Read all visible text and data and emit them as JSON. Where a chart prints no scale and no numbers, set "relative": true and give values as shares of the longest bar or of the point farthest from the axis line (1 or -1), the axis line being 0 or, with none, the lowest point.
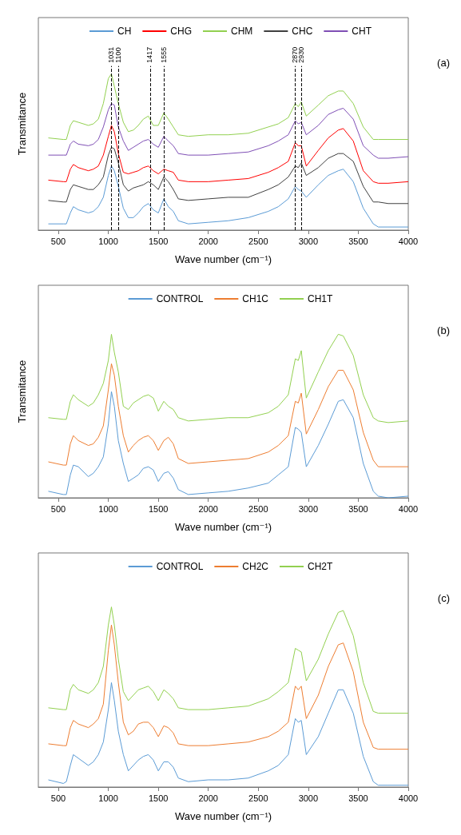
{
  "chart_data": [
    {
      "type": "line",
      "relative": true,
      "xlabel": "Wave number (cm⁻¹)",
      "ylabel": "Transmitance",
      "legend": "top",
      "tick_labels": "x",
      "annotations": [
        "(a)"
      ],
      "xlim": [
        300,
        4000
      ],
      "xticks": [
        500,
        1000,
        1500,
        2000,
        2500,
        3000,
        3500,
        4000
      ],
      "x": [
        400,
        550,
        580,
        620,
        650,
        700,
        800,
        850,
        900,
        950,
        1000,
        1031,
        1060,
        1100,
        1150,
        1200,
        1250,
        1300,
        1350,
        1400,
        1450,
        1500,
        1555,
        1600,
        1650,
        1700,
        1800,
        2000,
        2200,
        2400,
        2600,
        2700,
        2800,
        2870,
        2900,
        2930,
        2980,
        3100,
        3200,
        3300,
        3350,
        3450,
        3550,
        3650,
        3700,
        3800,
        4000
      ],
      "ref_lines": [
        {
          "axis": "x",
          "value": 1031,
          "label": "1031",
          "line_style": "dashed",
          "color": "#000000"
        },
        {
          "axis": "x",
          "value": 1100,
          "label": "1100",
          "line_style": "dashed",
          "color": "#000000"
        },
        {
          "axis": "x",
          "value": 1417,
          "label": "1417",
          "line_style": "dashed",
          "color": "#000000"
        },
        {
          "axis": "x",
          "value": 1555,
          "label": "1555",
          "line_style": "dashed",
          "color": "#000000"
        },
        {
          "axis": "x",
          "value": 2870,
          "label": "2870",
          "line_style": "dashed",
          "color": "#000000"
        },
        {
          "axis": "x",
          "value": 2930,
          "label": "2930",
          "line_style": "dashed",
          "color": "#000000"
        }
      ],
      "series": [
        {
          "name": "CH",
          "color": "#5b9bd5",
          "values": [
            0.04,
            0.04,
            0.04,
            0.11,
            0.15,
            0.13,
            0.11,
            0.12,
            0.15,
            0.21,
            0.35,
            0.41,
            0.38,
            0.28,
            0.14,
            0.08,
            0.08,
            0.11,
            0.15,
            0.17,
            0.13,
            0.11,
            0.2,
            0.15,
            0.12,
            0.06,
            0.04,
            0.05,
            0.06,
            0.08,
            0.12,
            0.15,
            0.2,
            0.28,
            0.26,
            0.25,
            0.21,
            0.29,
            0.35,
            0.38,
            0.39,
            0.31,
            0.14,
            0.04,
            0.02,
            0.02,
            0.02
          ]
        },
        {
          "name": "CHG",
          "color": "#ff0000",
          "values": [
            0.32,
            0.31,
            0.31,
            0.39,
            0.42,
            0.4,
            0.38,
            0.39,
            0.41,
            0.48,
            0.6,
            0.67,
            0.63,
            0.49,
            0.37,
            0.36,
            0.37,
            0.38,
            0.4,
            0.41,
            0.38,
            0.36,
            0.39,
            0.38,
            0.37,
            0.32,
            0.31,
            0.31,
            0.32,
            0.33,
            0.37,
            0.4,
            0.44,
            0.56,
            0.54,
            0.54,
            0.41,
            0.51,
            0.59,
            0.64,
            0.65,
            0.57,
            0.38,
            0.31,
            0.3,
            0.3,
            0.31
          ]
        },
        {
          "name": "CHM",
          "color": "#92d050",
          "values": [
            0.59,
            0.58,
            0.58,
            0.67,
            0.7,
            0.69,
            0.67,
            0.68,
            0.71,
            0.81,
            0.97,
            1.0,
            0.92,
            0.81,
            0.69,
            0.63,
            0.64,
            0.67,
            0.71,
            0.73,
            0.67,
            0.67,
            0.75,
            0.71,
            0.66,
            0.61,
            0.6,
            0.61,
            0.61,
            0.62,
            0.66,
            0.68,
            0.72,
            0.81,
            0.79,
            0.82,
            0.73,
            0.8,
            0.86,
            0.89,
            0.89,
            0.81,
            0.66,
            0.58,
            0.58,
            0.58,
            0.58
          ]
        },
        {
          "name": "CHC",
          "color": "#404040",
          "values": [
            0.19,
            0.18,
            0.18,
            0.26,
            0.29,
            0.28,
            0.26,
            0.26,
            0.29,
            0.34,
            0.48,
            0.53,
            0.52,
            0.43,
            0.29,
            0.25,
            0.27,
            0.28,
            0.29,
            0.31,
            0.29,
            0.26,
            0.34,
            0.31,
            0.26,
            0.2,
            0.19,
            0.2,
            0.21,
            0.21,
            0.26,
            0.29,
            0.34,
            0.41,
            0.4,
            0.43,
            0.35,
            0.4,
            0.46,
            0.49,
            0.49,
            0.44,
            0.28,
            0.18,
            0.18,
            0.17,
            0.17
          ]
        },
        {
          "name": "CHT",
          "color": "#7f4fb5",
          "values": [
            0.48,
            0.48,
            0.48,
            0.55,
            0.57,
            0.55,
            0.54,
            0.55,
            0.58,
            0.66,
            0.77,
            0.81,
            0.8,
            0.66,
            0.57,
            0.51,
            0.53,
            0.55,
            0.57,
            0.58,
            0.55,
            0.53,
            0.6,
            0.57,
            0.54,
            0.49,
            0.48,
            0.48,
            0.49,
            0.5,
            0.54,
            0.57,
            0.61,
            0.7,
            0.68,
            0.69,
            0.61,
            0.67,
            0.74,
            0.77,
            0.78,
            0.71,
            0.54,
            0.48,
            0.46,
            0.46,
            0.47
          ]
        }
      ]
    },
    {
      "type": "line",
      "relative": true,
      "xlabel": "Wave number (cm⁻¹)",
      "ylabel": "Transmitance",
      "legend": "top",
      "tick_labels": "x",
      "annotations": [
        "(b)"
      ],
      "xlim": [
        300,
        4000
      ],
      "xticks": [
        500,
        1000,
        1500,
        2000,
        2500,
        3000,
        3500,
        4000
      ],
      "x": [
        400,
        550,
        580,
        620,
        650,
        700,
        800,
        850,
        900,
        950,
        1000,
        1031,
        1060,
        1100,
        1150,
        1200,
        1250,
        1300,
        1350,
        1400,
        1450,
        1500,
        1555,
        1600,
        1650,
        1700,
        1800,
        2000,
        2200,
        2400,
        2600,
        2700,
        2800,
        2870,
        2900,
        2930,
        2980,
        3100,
        3200,
        3300,
        3350,
        3450,
        3550,
        3650,
        3700,
        3800,
        4000
      ],
      "series": [
        {
          "name": "CONTROL",
          "color": "#5b9bd5",
          "values": [
            0.04,
            0.02,
            0.02,
            0.14,
            0.2,
            0.19,
            0.13,
            0.15,
            0.19,
            0.25,
            0.45,
            0.65,
            0.56,
            0.35,
            0.21,
            0.1,
            0.12,
            0.14,
            0.18,
            0.19,
            0.17,
            0.1,
            0.15,
            0.16,
            0.12,
            0.05,
            0.02,
            0.03,
            0.04,
            0.06,
            0.09,
            0.14,
            0.19,
            0.43,
            0.42,
            0.4,
            0.19,
            0.32,
            0.45,
            0.59,
            0.6,
            0.49,
            0.21,
            0.04,
            0.01,
            0.0,
            0.01
          ]
        },
        {
          "name": "CH1C",
          "color": "#ed7d31",
          "values": [
            0.22,
            0.2,
            0.2,
            0.33,
            0.38,
            0.35,
            0.32,
            0.33,
            0.37,
            0.44,
            0.66,
            0.82,
            0.75,
            0.56,
            0.38,
            0.28,
            0.32,
            0.35,
            0.37,
            0.38,
            0.35,
            0.29,
            0.35,
            0.37,
            0.33,
            0.24,
            0.21,
            0.22,
            0.23,
            0.24,
            0.28,
            0.32,
            0.38,
            0.59,
            0.58,
            0.64,
            0.39,
            0.54,
            0.68,
            0.78,
            0.78,
            0.66,
            0.4,
            0.23,
            0.19,
            0.19,
            0.19
          ]
        },
        {
          "name": "CH1T",
          "color": "#92d050",
          "values": [
            0.49,
            0.48,
            0.48,
            0.59,
            0.63,
            0.6,
            0.56,
            0.58,
            0.63,
            0.7,
            0.84,
            1.0,
            0.89,
            0.77,
            0.56,
            0.54,
            0.58,
            0.6,
            0.62,
            0.63,
            0.61,
            0.53,
            0.59,
            0.56,
            0.54,
            0.49,
            0.47,
            0.48,
            0.49,
            0.49,
            0.52,
            0.56,
            0.63,
            0.85,
            0.84,
            0.9,
            0.61,
            0.77,
            0.9,
            1.0,
            0.99,
            0.87,
            0.63,
            0.49,
            0.47,
            0.46,
            0.47
          ]
        }
      ]
    },
    {
      "type": "line",
      "relative": true,
      "xlabel": "Wave number (cm⁻¹)",
      "legend": "top",
      "tick_labels": "x",
      "annotations": [
        "(c)"
      ],
      "xlim": [
        300,
        4000
      ],
      "xticks": [
        500,
        1000,
        1500,
        2000,
        2500,
        3000,
        3500,
        4000
      ],
      "x": [
        400,
        550,
        580,
        620,
        650,
        700,
        800,
        850,
        900,
        950,
        1000,
        1031,
        1060,
        1100,
        1150,
        1200,
        1250,
        1300,
        1350,
        1400,
        1450,
        1500,
        1555,
        1600,
        1650,
        1700,
        1800,
        2000,
        2200,
        2400,
        2600,
        2700,
        2800,
        2870,
        2900,
        2930,
        2980,
        3100,
        3200,
        3300,
        3350,
        3450,
        3550,
        3650,
        3700,
        3800,
        4000
      ],
      "series": [
        {
          "name": "CONTROL",
          "color": "#5b9bd5",
          "values": [
            0.04,
            0.02,
            0.03,
            0.12,
            0.18,
            0.16,
            0.12,
            0.14,
            0.18,
            0.25,
            0.43,
            0.58,
            0.48,
            0.31,
            0.18,
            0.09,
            0.12,
            0.15,
            0.17,
            0.18,
            0.15,
            0.09,
            0.14,
            0.14,
            0.11,
            0.05,
            0.03,
            0.04,
            0.04,
            0.05,
            0.09,
            0.12,
            0.18,
            0.38,
            0.36,
            0.37,
            0.18,
            0.28,
            0.41,
            0.54,
            0.54,
            0.41,
            0.17,
            0.03,
            0.01,
            0.01,
            0.01
          ]
        },
        {
          "name": "CH2C",
          "color": "#ed7d31",
          "values": [
            0.24,
            0.23,
            0.23,
            0.33,
            0.37,
            0.35,
            0.33,
            0.35,
            0.38,
            0.46,
            0.76,
            0.9,
            0.79,
            0.58,
            0.36,
            0.29,
            0.31,
            0.35,
            0.36,
            0.36,
            0.33,
            0.28,
            0.34,
            0.33,
            0.3,
            0.24,
            0.23,
            0.23,
            0.24,
            0.25,
            0.28,
            0.31,
            0.36,
            0.56,
            0.54,
            0.56,
            0.38,
            0.51,
            0.67,
            0.79,
            0.8,
            0.64,
            0.36,
            0.22,
            0.21,
            0.21,
            0.21
          ]
        },
        {
          "name": "CH2T",
          "color": "#92d050",
          "values": [
            0.44,
            0.43,
            0.43,
            0.54,
            0.57,
            0.54,
            0.52,
            0.54,
            0.58,
            0.67,
            0.9,
            1.0,
            0.9,
            0.71,
            0.53,
            0.48,
            0.51,
            0.54,
            0.55,
            0.56,
            0.53,
            0.48,
            0.54,
            0.52,
            0.49,
            0.44,
            0.43,
            0.43,
            0.44,
            0.45,
            0.49,
            0.53,
            0.58,
            0.77,
            0.76,
            0.75,
            0.59,
            0.71,
            0.85,
            0.97,
            0.98,
            0.84,
            0.58,
            0.42,
            0.41,
            0.41,
            0.41
          ]
        }
      ]
    }
  ]
}
